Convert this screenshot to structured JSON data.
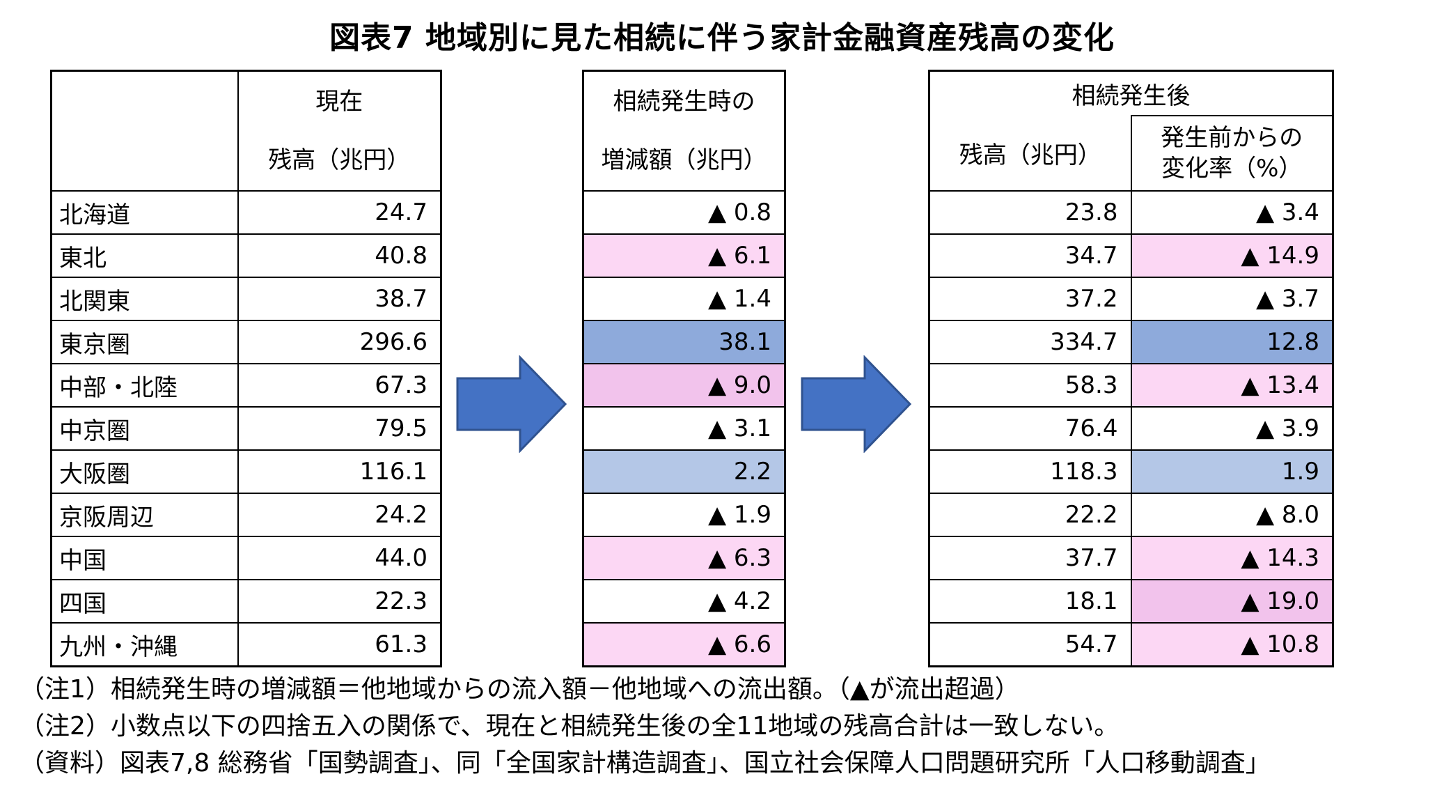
{
  "title": "図表7 地域別に見た相続に伴う家計金融資産残高の変化",
  "table1": {
    "header_line1": "現在",
    "header_line2": "残高（兆円）",
    "regions": [
      "北海道",
      "東北",
      "北関東",
      "東京圏",
      "中部・北陸",
      "中京圏",
      "大阪圏",
      "京阪周辺",
      "中国",
      "四国",
      "九州・沖縄"
    ],
    "values": [
      "24.7",
      "40.8",
      "38.7",
      "296.6",
      "67.3",
      "79.5",
      "116.1",
      "24.2",
      "44.0",
      "22.3",
      "61.3"
    ]
  },
  "table2": {
    "header_line1": "相続発生時の",
    "header_line2": "増減額（兆円）",
    "values": [
      "▲ 0.8",
      "▲ 6.1",
      "▲ 1.4",
      "38.1",
      "▲ 9.0",
      "▲ 3.1",
      "2.2",
      "▲ 1.9",
      "▲ 6.3",
      "▲ 4.2",
      "▲ 6.6"
    ],
    "highlight": [
      "",
      "pink-light",
      "",
      "blue",
      "pink",
      "",
      "blue-light",
      "",
      "pink-light",
      "",
      "pink-light"
    ]
  },
  "table3": {
    "header_top": "相続発生後",
    "col1_header": "残高（兆円）",
    "col2_header_line1": "発生前からの",
    "col2_header_line2": "変化率（%）",
    "balances": [
      "23.8",
      "34.7",
      "37.2",
      "334.7",
      "58.3",
      "76.4",
      "118.3",
      "22.2",
      "37.7",
      "18.1",
      "54.7"
    ],
    "rates": [
      "▲ 3.4",
      "▲ 14.9",
      "▲ 3.7",
      "12.8",
      "▲ 13.4",
      "▲ 3.9",
      "1.9",
      "▲ 8.0",
      "▲ 14.3",
      "▲ 19.0",
      "▲ 10.8"
    ],
    "rate_highlight": [
      "",
      "pink-light",
      "",
      "blue",
      "pink-light",
      "",
      "blue-light",
      "",
      "pink-light",
      "pink",
      "pink-light"
    ]
  },
  "colors": {
    "pink_light": "#fcd7f4",
    "pink": "#f2c3ec",
    "blue": "#8eaadb",
    "blue_light": "#b4c7e7",
    "arrow": "#4472c4"
  },
  "arrow_icon": "right-arrow-icon",
  "notes": [
    "（注1）相続発生時の増減額＝他地域からの流入額－他地域への流出額。（▲が流出超過）",
    "（注2）小数点以下の四捨五入の関係で、現在と相続発生後の全11地域の残高合計は一致しない。",
    "（資料）図表7,8 総務省「国勢調査」、同「全国家計構造調査」、国立社会保障人口問題研究所「人口移動調査」"
  ]
}
